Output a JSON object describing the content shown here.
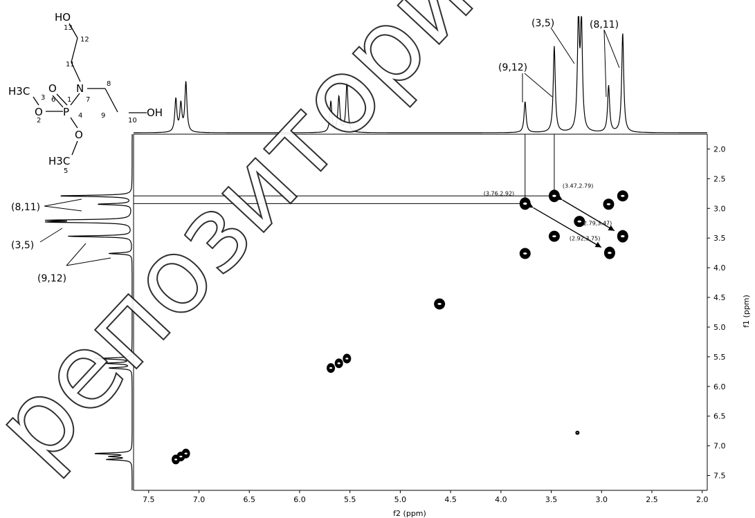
{
  "watermark": "репозиторий",
  "molecule": {
    "atoms": {
      "ho_top": "HO",
      "n": "N",
      "p": "P",
      "o_double": "O",
      "o_left": "O",
      "o_right": "O",
      "oh": "OH",
      "ch3_top": "H3C",
      "ch3_bottom": "H3C"
    },
    "numbers": [
      "1",
      "2",
      "3",
      "4",
      "5",
      "6",
      "7",
      "8",
      "9",
      "10",
      "11",
      "12",
      "13"
    ]
  },
  "peak_labels": {
    "top_35": "(3,5)",
    "top_811": "(8,11)",
    "top_912": "(9,12)",
    "left_811": "(8,11)",
    "left_35": "(3,5)",
    "left_912": "(9,12)"
  },
  "chart_data": {
    "type": "heatmap",
    "subtype": "2D NMR COSY",
    "xlabel": "f2 (ppm)",
    "ylabel": "f1 (ppm)",
    "xlim": [
      7.65,
      1.95
    ],
    "ylim": [
      1.75,
      7.75
    ],
    "x_ticks": [
      "7.5",
      "7.0",
      "6.5",
      "6.0",
      "5.5",
      "5.0",
      "4.5",
      "4.0",
      "3.5",
      "3.0",
      "2.5",
      "2.0"
    ],
    "y_ticks": [
      "2.0",
      "2.5",
      "3.0",
      "3.5",
      "4.0",
      "4.5",
      "5.0",
      "5.5",
      "6.0",
      "6.5",
      "7.0",
      "7.5"
    ],
    "cross_peaks": [
      {
        "f2": 3.76,
        "f1": 2.92,
        "label": "(3.76,2.92)"
      },
      {
        "f2": 3.47,
        "f1": 2.79,
        "label": "(3.47,2.79)"
      },
      {
        "f2": 2.79,
        "f1": 3.47,
        "label": "(2.79,3.47)"
      },
      {
        "f2": 2.92,
        "f1": 3.75,
        "label": "(2.92,3.75)"
      }
    ],
    "diagonal_peaks": [
      {
        "f2": 2.79,
        "f1": 2.79
      },
      {
        "f2": 2.93,
        "f1": 2.93
      },
      {
        "f2": 3.22,
        "f1": 3.22
      },
      {
        "f2": 3.47,
        "f1": 3.47
      },
      {
        "f2": 3.76,
        "f1": 3.76
      },
      {
        "f2": 4.61,
        "f1": 4.61
      },
      {
        "f2": 5.53,
        "f1": 5.53
      },
      {
        "f2": 5.61,
        "f1": 5.61
      },
      {
        "f2": 5.69,
        "f1": 5.69
      },
      {
        "f2": 7.13,
        "f1": 7.13
      },
      {
        "f2": 7.18,
        "f1": 7.18
      },
      {
        "f2": 7.23,
        "f1": 7.23
      },
      {
        "f2": 3.24,
        "f1": 6.78
      }
    ],
    "projection_peaks": [
      {
        "ppm": 7.23,
        "h": 0.3
      },
      {
        "ppm": 7.18,
        "h": 0.25
      },
      {
        "ppm": 7.13,
        "h": 0.45
      },
      {
        "ppm": 5.69,
        "h": 0.28
      },
      {
        "ppm": 5.61,
        "h": 0.32
      },
      {
        "ppm": 5.53,
        "h": 0.45
      },
      {
        "ppm": 3.76,
        "h": 0.28
      },
      {
        "ppm": 3.47,
        "h": 0.78
      },
      {
        "ppm": 3.23,
        "h": 1.0
      },
      {
        "ppm": 3.2,
        "h": 0.95
      },
      {
        "ppm": 2.93,
        "h": 0.42
      },
      {
        "ppm": 2.79,
        "h": 0.9
      }
    ],
    "grid": false
  }
}
